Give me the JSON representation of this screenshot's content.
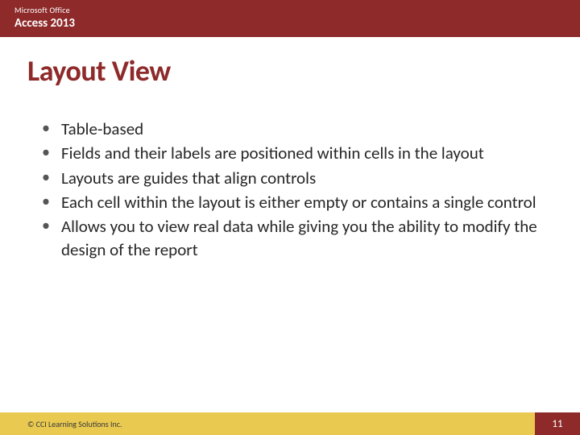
{
  "colors": {
    "header_bg": "#8e2a2a",
    "title_color": "#8e2a2a",
    "body_color": "#262626",
    "bullet_color": "#555555",
    "footer_left_bg": "#e9c94f",
    "footer_left_color": "#3a3a3a",
    "footer_right_bg": "#8e2a2a"
  },
  "header": {
    "line1": "Microsoft Office",
    "line2": "Access 2013"
  },
  "title": "Layout View",
  "bullets": [
    "Table-based",
    "Fields and their labels are positioned within cells in the layout",
    "Layouts are guides that align controls",
    "Each cell within the layout is either empty or contains a single control",
    "Allows you to view real data while giving you the ability to modify the design of the report"
  ],
  "footer": {
    "copyright": "© CCI Learning Solutions Inc.",
    "page_number": "11"
  }
}
